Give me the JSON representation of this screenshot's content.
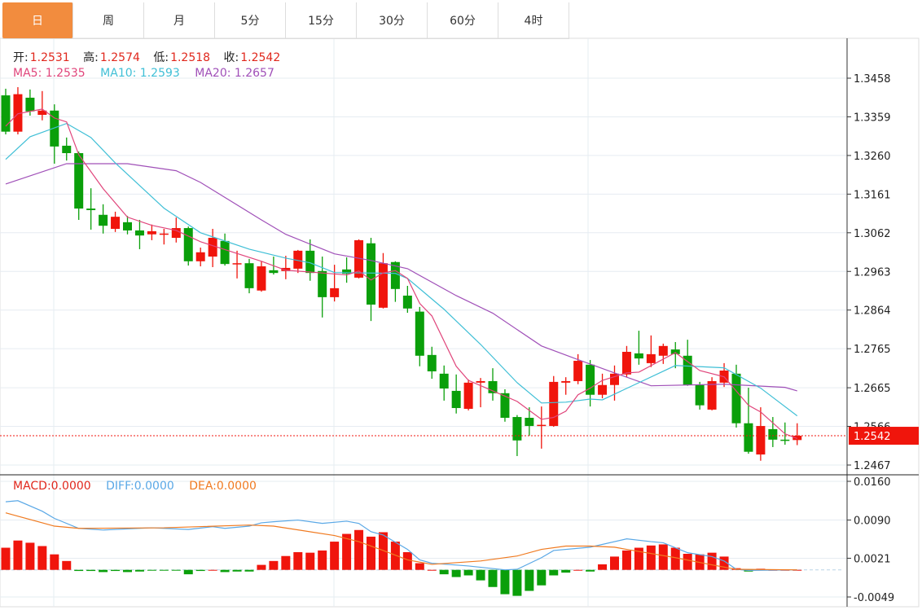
{
  "tabs": [
    {
      "label": "日",
      "active": true
    },
    {
      "label": "周"
    },
    {
      "label": "月"
    },
    {
      "label": "5分"
    },
    {
      "label": "15分"
    },
    {
      "label": "30分"
    },
    {
      "label": "60分"
    },
    {
      "label": "4时"
    }
  ],
  "ohlc_header": {
    "open_label": "开:",
    "open": "1.2531",
    "high_label": "高:",
    "high": "1.2574",
    "low_label": "低:",
    "low": "1.2518",
    "close_label": "收:",
    "close": "1.2542"
  },
  "ma_header": {
    "ma5": "MA5: 1.2535",
    "ma10": "MA10: 1.2593",
    "ma20": "MA20: 1.2657"
  },
  "macd_header": {
    "macd": "MACD:0.0000",
    "diff": "DIFF:0.0000",
    "dea": "DEA:0.0000"
  },
  "colors": {
    "up": "#f0150c",
    "down": "#0a9f0a",
    "ma5": "#e0457b",
    "ma10": "#3fbfd6",
    "ma20": "#a050b8",
    "diff": "#5aa8e6",
    "dea": "#f07a20",
    "active_tab": "#f28c3e"
  },
  "chart_data": {
    "type": "candlestick",
    "price_axis": {
      "ticks": [
        "1.3458",
        "1.3359",
        "1.3260",
        "1.3161",
        "1.3062",
        "1.2963",
        "1.2864",
        "1.2765",
        "1.2665",
        "1.2566",
        "1.2467"
      ],
      "range": [
        1.2467,
        1.3458
      ],
      "last_price": "1.2542",
      "grid": true
    },
    "candles": [
      [
        1.3414,
        1.3431,
        1.3314,
        1.3321
      ],
      [
        1.3321,
        1.3435,
        1.3314,
        1.3417
      ],
      [
        1.3408,
        1.3429,
        1.3362,
        1.3373
      ],
      [
        1.3364,
        1.3425,
        1.335,
        1.3375
      ],
      [
        1.3375,
        1.3391,
        1.3239,
        1.3283
      ],
      [
        1.3285,
        1.3306,
        1.3247,
        1.3266
      ],
      [
        1.3266,
        1.327,
        1.3095,
        1.3124
      ],
      [
        1.3124,
        1.3176,
        1.307,
        1.312
      ],
      [
        1.3108,
        1.3135,
        1.306,
        1.308
      ],
      [
        1.3072,
        1.3116,
        1.3064,
        1.3103
      ],
      [
        1.3089,
        1.3105,
        1.3058,
        1.3068
      ],
      [
        1.3068,
        1.3095,
        1.302,
        1.3055
      ],
      [
        1.3058,
        1.3083,
        1.3043,
        1.3066
      ],
      [
        1.3058,
        1.3072,
        1.3032,
        1.306
      ],
      [
        1.3049,
        1.3101,
        1.3037,
        1.3074
      ],
      [
        1.3074,
        1.3078,
        1.2978,
        1.2989
      ],
      [
        1.2989,
        1.3024,
        1.2976,
        1.3012
      ],
      [
        1.3001,
        1.3072,
        1.2974,
        1.3049
      ],
      [
        1.3041,
        1.306,
        1.2978,
        1.2982
      ],
      [
        1.2982,
        1.3016,
        1.2945,
        1.2984
      ],
      [
        1.2984,
        1.2995,
        1.2907,
        1.292
      ],
      [
        1.2914,
        1.2989,
        1.2911,
        1.2976
      ],
      [
        1.2966,
        1.3001,
        1.2955,
        1.2959
      ],
      [
        1.2964,
        1.3003,
        1.2943,
        1.2972
      ],
      [
        1.297,
        1.3018,
        1.2959,
        1.3016
      ],
      [
        1.3016,
        1.3045,
        1.2939,
        1.2959
      ],
      [
        1.2964,
        1.3001,
        1.2845,
        1.2897
      ],
      [
        1.2897,
        1.298,
        1.2886,
        1.292
      ],
      [
        1.2968,
        1.2999,
        1.2934,
        1.2957
      ],
      [
        1.2947,
        1.3045,
        1.2945,
        1.3043
      ],
      [
        1.3035,
        1.3049,
        1.2836,
        1.2878
      ],
      [
        1.287,
        1.301,
        1.2868,
        1.2984
      ],
      [
        1.2987,
        1.2989,
        1.2885,
        1.2918
      ],
      [
        1.2901,
        1.2926,
        1.2857,
        1.2868
      ],
      [
        1.286,
        1.2872,
        1.272,
        1.2747
      ],
      [
        1.2749,
        1.277,
        1.2688,
        1.2707
      ],
      [
        1.2701,
        1.2722,
        1.2632,
        1.2663
      ],
      [
        1.2657,
        1.2699,
        1.2599,
        1.2613
      ],
      [
        1.2611,
        1.2686,
        1.2607,
        1.2678
      ],
      [
        1.2678,
        1.269,
        1.2615,
        1.2682
      ],
      [
        1.2682,
        1.2715,
        1.2632,
        1.2651
      ],
      [
        1.2651,
        1.2661,
        1.2578,
        1.2588
      ],
      [
        1.259,
        1.2595,
        1.249,
        1.253
      ],
      [
        1.2588,
        1.2615,
        1.2542,
        1.2567
      ],
      [
        1.2567,
        1.2617,
        1.2509,
        1.257
      ],
      [
        1.2567,
        1.2695,
        1.2565,
        1.268
      ],
      [
        1.2678,
        1.2692,
        1.2647,
        1.2682
      ],
      [
        1.2682,
        1.2751,
        1.2674,
        1.2734
      ],
      [
        1.2724,
        1.2736,
        1.2617,
        1.2647
      ],
      [
        1.2647,
        1.2701,
        1.2638,
        1.2672
      ],
      [
        1.2672,
        1.2722,
        1.2632,
        1.2701
      ],
      [
        1.2699,
        1.2772,
        1.2692,
        1.2757
      ],
      [
        1.2753,
        1.2811,
        1.2724,
        1.274
      ],
      [
        1.2728,
        1.2799,
        1.2718,
        1.2751
      ],
      [
        1.2747,
        1.2778,
        1.2726,
        1.2772
      ],
      [
        1.2763,
        1.2782,
        1.2715,
        1.2751
      ],
      [
        1.2747,
        1.2788,
        1.267,
        1.2672
      ],
      [
        1.2672,
        1.268,
        1.2609,
        1.262
      ],
      [
        1.2609,
        1.2692,
        1.2607,
        1.2682
      ],
      [
        1.2678,
        1.2728,
        1.2667,
        1.2709
      ],
      [
        1.2701,
        1.2724,
        1.2563,
        1.2574
      ],
      [
        1.2574,
        1.2665,
        1.2496,
        1.2501
      ],
      [
        1.2494,
        1.2615,
        1.2478,
        1.2567
      ],
      [
        1.2559,
        1.259,
        1.2513,
        1.2532
      ],
      [
        1.2532,
        1.2576,
        1.2519,
        1.253
      ],
      [
        1.2531,
        1.2574,
        1.2518,
        1.2542
      ]
    ],
    "candle_fields": [
      "open",
      "high",
      "low",
      "close"
    ],
    "ma5": [
      [
        0,
        1.3335
      ],
      [
        1,
        1.3367
      ],
      [
        3,
        1.3379
      ],
      [
        4,
        1.3356
      ],
      [
        5,
        1.3346
      ],
      [
        6,
        1.3262
      ],
      [
        8,
        1.3175
      ],
      [
        10,
        1.3102
      ],
      [
        12,
        1.3081
      ],
      [
        14,
        1.3068
      ],
      [
        16,
        1.3039
      ],
      [
        21,
        1.2989
      ],
      [
        23,
        1.2966
      ],
      [
        26,
        1.2959
      ],
      [
        28,
        1.2954
      ],
      [
        29,
        1.2964
      ],
      [
        30,
        1.2941
      ],
      [
        31,
        1.2959
      ],
      [
        32,
        1.2965
      ],
      [
        33,
        1.2945
      ],
      [
        34,
        1.2881
      ],
      [
        35,
        1.2849
      ],
      [
        37,
        1.272
      ],
      [
        38,
        1.2684
      ],
      [
        40,
        1.2657
      ],
      [
        42,
        1.263
      ],
      [
        44,
        1.2584
      ],
      [
        45,
        1.2589
      ],
      [
        46,
        1.2605
      ],
      [
        47,
        1.2647
      ],
      [
        48,
        1.2664
      ],
      [
        49,
        1.2684
      ],
      [
        51,
        1.2703
      ],
      [
        52,
        1.2705
      ],
      [
        55,
        1.2755
      ],
      [
        57,
        1.2709
      ],
      [
        59,
        1.2693
      ],
      [
        61,
        1.262
      ],
      [
        62,
        1.2603
      ],
      [
        64,
        1.2547
      ],
      [
        65,
        1.2535
      ]
    ],
    "ma10": [
      [
        0,
        1.325
      ],
      [
        2,
        1.3308
      ],
      [
        5,
        1.3342
      ],
      [
        7,
        1.3306
      ],
      [
        9,
        1.3241
      ],
      [
        13,
        1.3125
      ],
      [
        16,
        1.3062
      ],
      [
        20,
        1.302
      ],
      [
        23,
        1.2997
      ],
      [
        25,
        1.2985
      ],
      [
        27,
        1.296
      ],
      [
        32,
        1.2958
      ],
      [
        33,
        1.2945
      ],
      [
        36,
        1.2866
      ],
      [
        39,
        1.2776
      ],
      [
        42,
        1.2678
      ],
      [
        44,
        1.2626
      ],
      [
        46,
        1.2628
      ],
      [
        48,
        1.2636
      ],
      [
        49,
        1.2634
      ],
      [
        52,
        1.2678
      ],
      [
        55,
        1.2722
      ],
      [
        59,
        1.2716
      ],
      [
        62,
        1.2664
      ],
      [
        65,
        1.2593
      ]
    ],
    "ma20": [
      [
        0,
        1.3187
      ],
      [
        5,
        1.3239
      ],
      [
        10,
        1.3239
      ],
      [
        14,
        1.3221
      ],
      [
        16,
        1.3191
      ],
      [
        21,
        1.3095
      ],
      [
        23,
        1.3058
      ],
      [
        27,
        1.3008
      ],
      [
        30,
        1.2991
      ],
      [
        33,
        1.297
      ],
      [
        37,
        1.2901
      ],
      [
        40,
        1.2856
      ],
      [
        44,
        1.2772
      ],
      [
        47,
        1.2737
      ],
      [
        50,
        1.2703
      ],
      [
        53,
        1.267
      ],
      [
        59,
        1.2674
      ],
      [
        64,
        1.2666
      ],
      [
        65,
        1.2657
      ]
    ],
    "macd_axis": {
      "ticks": [
        "0.0160",
        "0.0090",
        "0.0021",
        "-0.0049"
      ],
      "range": [
        -0.0049,
        0.016
      ]
    },
    "macd_hist": [
      0.004,
      0.0053,
      0.0049,
      0.0043,
      0.0028,
      0.0016,
      -0.0002,
      -0.0002,
      -0.0004,
      -0.0002,
      -0.0004,
      -0.0003,
      -0.0001,
      -0.0001,
      -0.0001,
      -0.0008,
      -0.0002,
      0.0,
      -0.0004,
      -0.0003,
      -0.0003,
      0.0009,
      0.0016,
      0.0025,
      0.0032,
      0.0031,
      0.0035,
      0.0051,
      0.0065,
      0.0072,
      0.006,
      0.0068,
      0.0051,
      0.0032,
      0.0012,
      0.0,
      -0.0008,
      -0.0013,
      -0.001,
      -0.0019,
      -0.0031,
      -0.0044,
      -0.0047,
      -0.0038,
      -0.0028,
      -0.001,
      -0.0005,
      0.0,
      -0.0003,
      0.001,
      0.0024,
      0.0035,
      0.004,
      0.0044,
      0.0046,
      0.004,
      0.0029,
      0.0028,
      0.0031,
      0.0024,
      0.0003,
      -0.0003,
      0.0002,
      0.0,
      0.0,
      0.0
    ],
    "diff": [
      [
        0,
        0.0123
      ],
      [
        1,
        0.0125
      ],
      [
        3,
        0.0106
      ],
      [
        4,
        0.0093
      ],
      [
        6,
        0.0075
      ],
      [
        8,
        0.0072
      ],
      [
        12,
        0.0076
      ],
      [
        15,
        0.0073
      ],
      [
        17,
        0.0078
      ],
      [
        18,
        0.0075
      ],
      [
        20,
        0.0079
      ],
      [
        21,
        0.0085
      ],
      [
        22,
        0.0087
      ],
      [
        24,
        0.009
      ],
      [
        26,
        0.0084
      ],
      [
        28,
        0.0088
      ],
      [
        29,
        0.0084
      ],
      [
        30,
        0.0069
      ],
      [
        31,
        0.0063
      ],
      [
        33,
        0.0037
      ],
      [
        34,
        0.0018
      ],
      [
        35,
        0.0012
      ],
      [
        38,
        0.0007
      ],
      [
        41,
        0.0
      ],
      [
        42,
        0.0001
      ],
      [
        44,
        0.0022
      ],
      [
        45,
        0.0035
      ],
      [
        48,
        0.0041
      ],
      [
        51,
        0.0056
      ],
      [
        53,
        0.0051
      ],
      [
        54,
        0.0049
      ],
      [
        56,
        0.0031
      ],
      [
        58,
        0.0024
      ],
      [
        59,
        0.0016
      ],
      [
        60,
        0.0001
      ],
      [
        61,
        -0.0001
      ],
      [
        65,
        0.0
      ]
    ],
    "dea": [
      [
        0,
        0.0103
      ],
      [
        1,
        0.0097
      ],
      [
        3,
        0.0085
      ],
      [
        4,
        0.0079
      ],
      [
        6,
        0.0075
      ],
      [
        13,
        0.0076
      ],
      [
        20,
        0.0081
      ],
      [
        22,
        0.0079
      ],
      [
        27,
        0.0062
      ],
      [
        29,
        0.0051
      ],
      [
        31,
        0.0035
      ],
      [
        33,
        0.0018
      ],
      [
        35,
        0.001
      ],
      [
        39,
        0.0016
      ],
      [
        42,
        0.0025
      ],
      [
        44,
        0.0037
      ],
      [
        46,
        0.0043
      ],
      [
        48,
        0.0043
      ],
      [
        50,
        0.0041
      ],
      [
        51,
        0.0037
      ],
      [
        55,
        0.0022
      ],
      [
        58,
        0.0009
      ],
      [
        60,
        0.0001
      ],
      [
        65,
        0.0
      ]
    ]
  }
}
